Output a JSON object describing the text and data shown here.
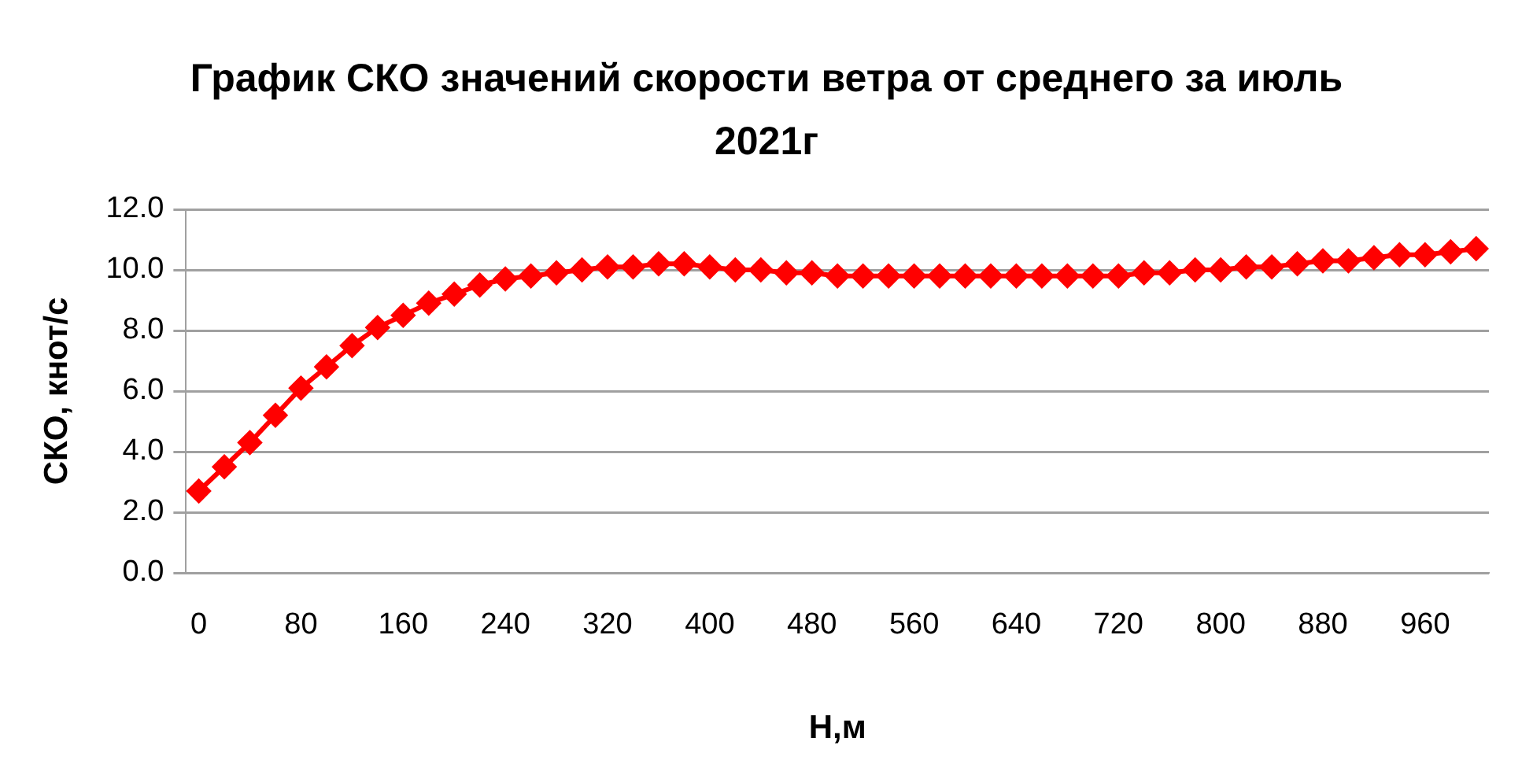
{
  "chart_data": {
    "type": "line",
    "title": "График СКО значений скорости ветра от среднего за июль 2021г",
    "xlabel": "Н,м",
    "ylabel": "СКО, кнот/с",
    "categories": [
      "0",
      null,
      null,
      null,
      "80",
      null,
      null,
      null,
      "160",
      null,
      null,
      null,
      "240",
      null,
      null,
      null,
      "320",
      null,
      null,
      null,
      "400",
      null,
      null,
      null,
      "480",
      null,
      null,
      null,
      "560",
      null,
      null,
      null,
      "640",
      null,
      null,
      null,
      "720",
      null,
      null,
      null,
      "800",
      null,
      null,
      null,
      "880",
      null,
      null,
      null,
      "960",
      null,
      null
    ],
    "series": [
      {
        "color": "#ff0000",
        "values": [
          2.7,
          3.5,
          4.3,
          5.2,
          6.1,
          6.8,
          7.5,
          8.1,
          8.5,
          8.9,
          9.2,
          9.5,
          9.7,
          9.8,
          9.9,
          10.0,
          10.1,
          10.1,
          10.2,
          10.2,
          10.1,
          10.0,
          10.0,
          9.9,
          9.9,
          9.8,
          9.8,
          9.8,
          9.8,
          9.8,
          9.8,
          9.8,
          9.8,
          9.8,
          9.8,
          9.8,
          9.8,
          9.9,
          9.9,
          10.0,
          10.0,
          10.1,
          10.1,
          10.2,
          10.3,
          10.3,
          10.4,
          10.5,
          10.5,
          10.6,
          10.7
        ]
      }
    ],
    "ylim": [
      0,
      12
    ],
    "yticks": [
      {
        "value": 0,
        "label": "0.0"
      },
      {
        "value": 2,
        "label": "2.0"
      },
      {
        "value": 4,
        "label": "4.0"
      },
      {
        "value": 6,
        "label": "6.0"
      },
      {
        "value": 8,
        "label": "8.0"
      },
      {
        "value": 10,
        "label": "10.0"
      },
      {
        "value": 12,
        "label": "12.0"
      }
    ],
    "grid": "y",
    "legend": false,
    "marker": "diamond",
    "line_style": "solid"
  }
}
